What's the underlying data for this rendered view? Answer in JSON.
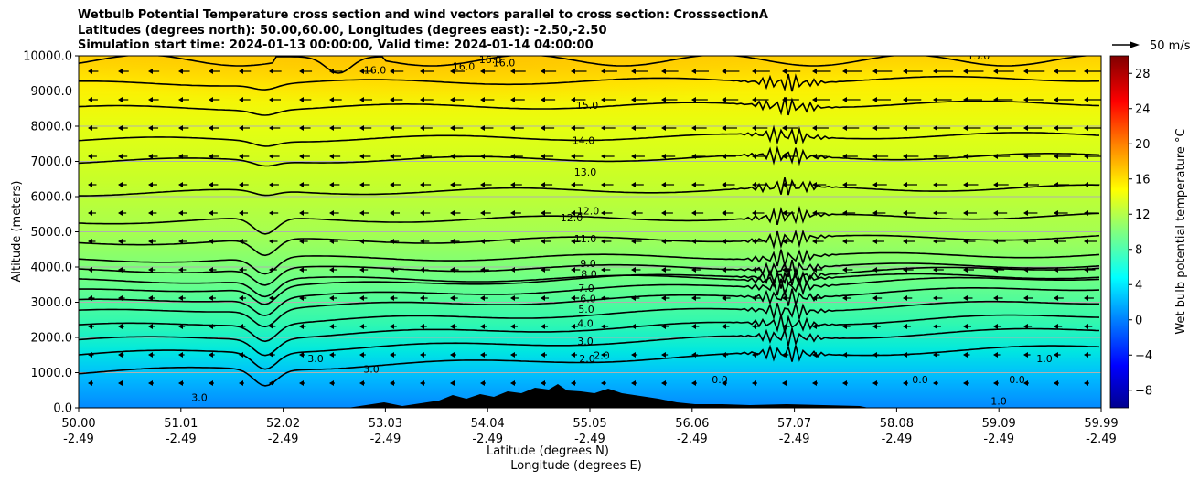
{
  "title": {
    "line1": "Wetbulb Potential Temperature cross section and wind vectors parallel to cross section: CrosssectionA",
    "line2": "Latitudes (degrees north): 50.00,60.00, Longitudes (degrees east): -2.50,-2.50",
    "line3": "Simulation start time: 2024-01-13 00:00:00, Valid time: 2024-01-14 04:00:00"
  },
  "chart_data": {
    "type": "contour-cross-section",
    "xlabel": "Latitude (degrees N)",
    "xlabel2": "Longitude (degrees E)",
    "ylabel": "Altitude (meters)",
    "ylim": [
      0,
      10000
    ],
    "grid": "horizontal",
    "xticks": [
      {
        "lat": "50.00",
        "lon": "-2.49"
      },
      {
        "lat": "51.01",
        "lon": "-2.49"
      },
      {
        "lat": "52.02",
        "lon": "-2.49"
      },
      {
        "lat": "53.03",
        "lon": "-2.49"
      },
      {
        "lat": "54.04",
        "lon": "-2.49"
      },
      {
        "lat": "55.05",
        "lon": "-2.49"
      },
      {
        "lat": "56.06",
        "lon": "-2.49"
      },
      {
        "lat": "57.07",
        "lon": "-2.49"
      },
      {
        "lat": "58.08",
        "lon": "-2.49"
      },
      {
        "lat": "59.09",
        "lon": "-2.49"
      },
      {
        "lat": "59.99",
        "lon": "-2.49"
      }
    ],
    "yticks": [
      "0.0",
      "1000.0",
      "2000.0",
      "3000.0",
      "4000.0",
      "5000.0",
      "6000.0",
      "7000.0",
      "8000.0",
      "9000.0",
      "10000.0"
    ],
    "colorbar": {
      "label": "Wet bulb potential temperature $^\\circ$C",
      "label_text": "Wet bulb potential temperature °C",
      "range": [
        -10,
        30
      ],
      "ticks": [
        "−8",
        "−4",
        "0",
        "4",
        "8",
        "12",
        "16",
        "20",
        "24",
        "28"
      ],
      "tick_values": [
        -8,
        -4,
        0,
        4,
        8,
        12,
        16,
        20,
        24,
        28
      ]
    },
    "vector_key": {
      "label": "50 m/s"
    },
    "contour_labels": [
      {
        "text": "15.0",
        "z": 8600
      },
      {
        "text": "14.0",
        "z": 7600
      },
      {
        "text": "13.0",
        "z": 6700
      },
      {
        "text": "12.0",
        "z": 5600
      },
      {
        "text": "12.0",
        "z": 5400
      },
      {
        "text": "11.0",
        "z": 4800
      },
      {
        "text": "9.0",
        "z": 4100
      },
      {
        "text": "8.0",
        "z": 3800
      },
      {
        "text": "7.0",
        "z": 3400
      },
      {
        "text": "6.0",
        "z": 3100
      },
      {
        "text": "5.0",
        "z": 2800
      },
      {
        "text": "4.0",
        "z": 2400
      },
      {
        "text": "3.0",
        "z": 1900
      },
      {
        "text": "2.0",
        "z": 1400
      },
      {
        "text": "2.0",
        "z": 1500
      },
      {
        "text": "16.0",
        "z": 9700
      },
      {
        "text": "16.0",
        "z": 9900
      },
      {
        "text": "16.0",
        "z": 9800
      },
      {
        "text": "16.0",
        "z": 9600
      },
      {
        "text": "15.0",
        "z": 10000
      },
      {
        "text": "3.0",
        "z": 1400
      },
      {
        "text": "3.0",
        "z": 1100
      },
      {
        "text": "3.0",
        "z": 300
      },
      {
        "text": "0.0",
        "z": 800
      },
      {
        "text": "0.0",
        "z": 800
      },
      {
        "text": "0.0",
        "z": 800
      },
      {
        "text": "1.0",
        "z": 1400
      },
      {
        "text": "1.0",
        "z": 200
      }
    ]
  }
}
